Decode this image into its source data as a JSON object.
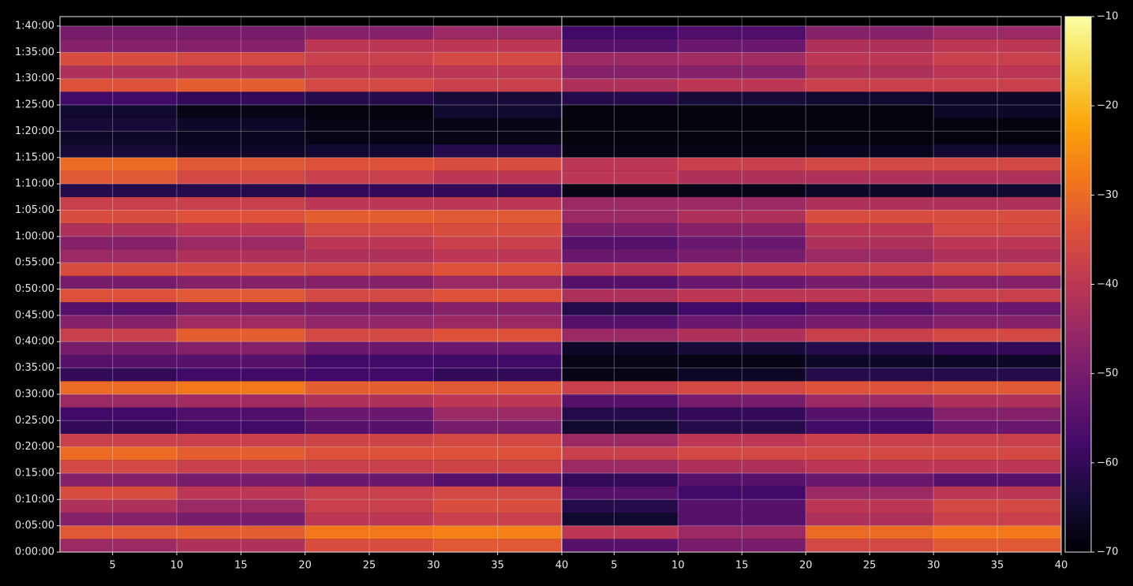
{
  "chart_data": {
    "type": "heatmap",
    "colormap": "inferno",
    "grid": true,
    "xbins": [
      0.9,
      10,
      20,
      30,
      40
    ],
    "xlim": [
      0.9,
      40
    ],
    "xticks": [
      5,
      10,
      15,
      20,
      25,
      30,
      35,
      40
    ],
    "ybins": [
      0,
      150,
      300,
      450,
      600,
      750,
      900,
      1050,
      1200,
      1350,
      1500,
      1650,
      1800,
      1950,
      2100,
      2250,
      2400,
      2550,
      2700,
      2850,
      3000,
      3150,
      3300,
      3450,
      3600,
      3750,
      3900,
      4050,
      4200,
      4350,
      4500,
      4650,
      4800,
      4950,
      5100,
      5250,
      5400,
      5550,
      5700,
      5850,
      6000
    ],
    "ylim": [
      0,
      6108
    ],
    "yticks": [
      {
        "value": 0,
        "label": "0:00:00"
      },
      {
        "value": 300,
        "label": "0:05:00"
      },
      {
        "value": 600,
        "label": "0:10:00"
      },
      {
        "value": 900,
        "label": "0:15:00"
      },
      {
        "value": 1200,
        "label": "0:20:00"
      },
      {
        "value": 1500,
        "label": "0:25:00"
      },
      {
        "value": 1800,
        "label": "0:30:00"
      },
      {
        "value": 2100,
        "label": "0:35:00"
      },
      {
        "value": 2400,
        "label": "0:40:00"
      },
      {
        "value": 2700,
        "label": "0:45:00"
      },
      {
        "value": 3000,
        "label": "0:50:00"
      },
      {
        "value": 3300,
        "label": "0:55:00"
      },
      {
        "value": 3600,
        "label": "1:00:00"
      },
      {
        "value": 3900,
        "label": "1:05:00"
      },
      {
        "value": 4200,
        "label": "1:10:00"
      },
      {
        "value": 4500,
        "label": "1:15:00"
      },
      {
        "value": 4800,
        "label": "1:20:00"
      },
      {
        "value": 5100,
        "label": "1:25:00"
      },
      {
        "value": 5400,
        "label": "1:30:00"
      },
      {
        "value": 5700,
        "label": "1:35:00"
      },
      {
        "value": 6000,
        "label": "1:40:00"
      }
    ],
    "colorbar": {
      "lim": [
        -70,
        -10
      ],
      "ticks": [
        {
          "value": -70,
          "label": "−70"
        },
        {
          "value": -60,
          "label": "−60"
        },
        {
          "value": -50,
          "label": "−50"
        },
        {
          "value": -40,
          "label": "−40"
        },
        {
          "value": -30,
          "label": "−30"
        },
        {
          "value": -20,
          "label": "−20"
        },
        {
          "value": -10,
          "label": "−10"
        }
      ]
    },
    "panels": [
      {
        "z": [
          [
            -45,
            -42,
            -35,
            -33
          ],
          [
            -33,
            -32,
            -28,
            -27
          ],
          [
            -48,
            -50,
            -40,
            -38
          ],
          [
            -42,
            -45,
            -38,
            -35
          ],
          [
            -35,
            -40,
            -38,
            -36
          ],
          [
            -48,
            -50,
            -52,
            -55
          ],
          [
            -36,
            -38,
            -38,
            -37
          ],
          [
            -30,
            -32,
            -34,
            -34
          ],
          [
            -38,
            -38,
            -37,
            -36
          ],
          [
            -60,
            -58,
            -55,
            -50
          ],
          [
            -58,
            -56,
            -52,
            -45
          ],
          [
            -45,
            -44,
            -42,
            -40
          ],
          [
            -30,
            -28,
            -32,
            -33
          ],
          [
            -60,
            -58,
            -58,
            -60
          ],
          [
            -55,
            -55,
            -58,
            -58
          ],
          [
            -50,
            -48,
            -52,
            -52
          ],
          [
            -38,
            -32,
            -36,
            -34
          ],
          [
            -48,
            -44,
            -46,
            -45
          ],
          [
            -55,
            -50,
            -50,
            -48
          ],
          [
            -34,
            -33,
            -36,
            -34
          ],
          [
            -50,
            -48,
            -48,
            -45
          ],
          [
            -35,
            -35,
            -36,
            -34
          ],
          [
            -45,
            -42,
            -42,
            -40
          ],
          [
            -48,
            -45,
            -40,
            -38
          ],
          [
            -42,
            -40,
            -36,
            -35
          ],
          [
            -35,
            -34,
            -32,
            -33
          ],
          [
            -38,
            -38,
            -40,
            -40
          ],
          [
            -62,
            -62,
            -60,
            -60
          ],
          [
            -33,
            -36,
            -38,
            -40
          ],
          [
            -30,
            -33,
            -34,
            -35
          ],
          [
            -64,
            -66,
            -65,
            -62
          ],
          [
            -66,
            -67,
            -68,
            -68
          ],
          [
            -64,
            -66,
            -68,
            -68
          ],
          [
            -65,
            -68,
            -69,
            -65
          ],
          [
            -58,
            -60,
            -62,
            -64
          ],
          [
            -34,
            -32,
            -36,
            -38
          ],
          [
            -42,
            -42,
            -40,
            -40
          ],
          [
            -35,
            -36,
            -38,
            -36
          ],
          [
            -48,
            -48,
            -40,
            -40
          ],
          [
            -50,
            -50,
            -48,
            -45
          ]
        ]
      },
      {
        "z": [
          [
            -55,
            -50,
            -36,
            -33
          ],
          [
            -40,
            -45,
            -30,
            -28
          ],
          [
            -65,
            -55,
            -42,
            -38
          ],
          [
            -62,
            -55,
            -40,
            -36
          ],
          [
            -55,
            -58,
            -45,
            -40
          ],
          [
            -60,
            -55,
            -52,
            -55
          ],
          [
            -45,
            -42,
            -40,
            -40
          ],
          [
            -38,
            -36,
            -36,
            -36
          ],
          [
            -45,
            -40,
            -38,
            -38
          ],
          [
            -65,
            -62,
            -58,
            -52
          ],
          [
            -62,
            -60,
            -55,
            -48
          ],
          [
            -55,
            -50,
            -45,
            -42
          ],
          [
            -38,
            -36,
            -34,
            -33
          ],
          [
            -68,
            -66,
            -62,
            -62
          ],
          [
            -68,
            -68,
            -66,
            -66
          ],
          [
            -66,
            -64,
            -62,
            -60
          ],
          [
            -45,
            -42,
            -38,
            -36
          ],
          [
            -55,
            -52,
            -50,
            -48
          ],
          [
            -62,
            -58,
            -55,
            -52
          ],
          [
            -42,
            -40,
            -40,
            -38
          ],
          [
            -55,
            -52,
            -50,
            -48
          ],
          [
            -40,
            -38,
            -38,
            -36
          ],
          [
            -52,
            -50,
            -45,
            -42
          ],
          [
            -55,
            -52,
            -42,
            -40
          ],
          [
            -50,
            -48,
            -40,
            -36
          ],
          [
            -45,
            -42,
            -35,
            -35
          ],
          [
            -45,
            -45,
            -42,
            -42
          ],
          [
            -68,
            -68,
            -66,
            -65
          ],
          [
            -40,
            -42,
            -42,
            -42
          ],
          [
            -40,
            -38,
            -36,
            -36
          ],
          [
            -68,
            -68,
            -67,
            -65
          ],
          [
            -69,
            -69,
            -69,
            -69
          ],
          [
            -69,
            -69,
            -69,
            -69
          ],
          [
            -69,
            -69,
            -69,
            -66
          ],
          [
            -62,
            -64,
            -65,
            -66
          ],
          [
            -42,
            -40,
            -38,
            -38
          ],
          [
            -48,
            -48,
            -42,
            -40
          ],
          [
            -45,
            -44,
            -40,
            -38
          ],
          [
            -55,
            -52,
            -42,
            -40
          ],
          [
            -58,
            -56,
            -48,
            -45
          ]
        ]
      }
    ]
  }
}
